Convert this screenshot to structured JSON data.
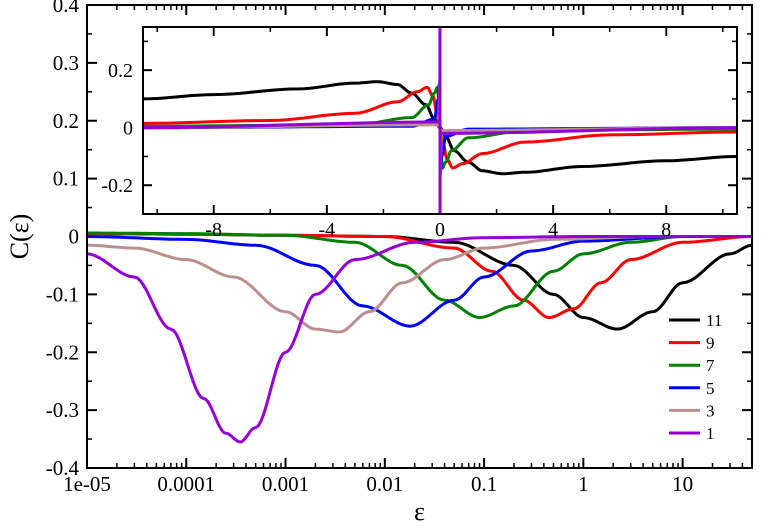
{
  "chart_data": [
    {
      "type": "line",
      "xscale": "log",
      "xlabel": "ε",
      "ylabel": "C(ε)",
      "xlim": [
        1e-05,
        50
      ],
      "ylim": [
        -0.4,
        0.4
      ],
      "xticks": [
        1e-05,
        0.0001,
        0.001,
        0.01,
        0.1,
        1,
        10
      ],
      "xtick_labels": [
        "1e-05",
        "0.0001",
        "0.001",
        "0.01",
        "0.1",
        "1",
        "10"
      ],
      "yticks": [
        -0.4,
        -0.3,
        -0.2,
        -0.1,
        0,
        0.1,
        0.2,
        0.3,
        0.4
      ],
      "ytick_labels": [
        "-0.4",
        "-0.3",
        "-0.2",
        "-0.1",
        "0",
        "0.1",
        "0.2",
        "0.3",
        "0.4"
      ],
      "legend_position": "bottom-right",
      "series": [
        {
          "name": "11",
          "color": "#000000",
          "x": [
            1e-05,
            0.0001,
            0.001,
            0.01,
            0.05,
            0.2,
            0.5,
            1,
            2.2,
            5,
            10,
            30,
            50
          ],
          "y": [
            0.005,
            0.004,
            0.002,
            0.0,
            -0.01,
            -0.05,
            -0.1,
            -0.14,
            -0.16,
            -0.13,
            -0.08,
            -0.03,
            -0.015
          ]
        },
        {
          "name": "9",
          "color": "#ff0000",
          "x": [
            1e-05,
            0.0001,
            0.001,
            0.01,
            0.05,
            0.12,
            0.25,
            0.45,
            0.8,
            1.5,
            3,
            10,
            50
          ],
          "y": [
            0.005,
            0.004,
            0.002,
            0.0,
            -0.02,
            -0.06,
            -0.11,
            -0.14,
            -0.125,
            -0.08,
            -0.04,
            -0.01,
            0.0
          ]
        },
        {
          "name": "7",
          "color": "#008000",
          "x": [
            1e-05,
            0.0001,
            0.001,
            0.005,
            0.015,
            0.04,
            0.09,
            0.2,
            0.5,
            1,
            3,
            10,
            50
          ],
          "y": [
            0.006,
            0.005,
            0.002,
            -0.01,
            -0.05,
            -0.11,
            -0.14,
            -0.12,
            -0.06,
            -0.03,
            -0.01,
            0.0,
            0.0
          ]
        },
        {
          "name": "5",
          "color": "#0000ff",
          "x": [
            1e-05,
            0.0001,
            0.0005,
            0.002,
            0.006,
            0.018,
            0.05,
            0.1,
            0.3,
            1,
            10,
            50
          ],
          "y": [
            0.0,
            -0.005,
            -0.015,
            -0.05,
            -0.12,
            -0.155,
            -0.11,
            -0.07,
            -0.025,
            -0.008,
            0.0,
            0.0
          ]
        },
        {
          "name": "3",
          "color": "#bc8f8f",
          "x": [
            1e-05,
            3e-05,
            0.0001,
            0.0003,
            0.001,
            0.002,
            0.0035,
            0.007,
            0.015,
            0.04,
            0.1,
            0.5,
            5,
            50
          ],
          "y": [
            -0.015,
            -0.02,
            -0.04,
            -0.07,
            -0.13,
            -0.16,
            -0.165,
            -0.13,
            -0.08,
            -0.04,
            -0.02,
            -0.005,
            0.0,
            0.0
          ]
        },
        {
          "name": "1",
          "color": "#9400d3",
          "x": [
            1e-05,
            3e-05,
            7e-05,
            0.00015,
            0.00025,
            0.00035,
            0.0005,
            0.001,
            0.002,
            0.005,
            0.02,
            0.1,
            1,
            50
          ],
          "y": [
            -0.03,
            -0.07,
            -0.16,
            -0.28,
            -0.34,
            -0.355,
            -0.33,
            -0.2,
            -0.1,
            -0.04,
            -0.01,
            -0.002,
            0.0,
            0.0
          ]
        }
      ]
    },
    {
      "type": "line",
      "xlim": [
        -10.5,
        10.5
      ],
      "ylim": [
        -0.3,
        0.35
      ],
      "xticks": [
        -8,
        -4,
        0,
        4,
        8
      ],
      "xtick_labels": [
        "-8",
        "-4",
        "0",
        "4",
        "8"
      ],
      "yticks": [
        -0.2,
        0,
        0.2
      ],
      "ytick_labels": [
        "-0.2",
        "0",
        "0.2"
      ],
      "series": [
        {
          "name": "11",
          "color": "#000000",
          "x": [
            -10.5,
            -8,
            -5,
            -3,
            -2.2,
            -1.5,
            -1,
            -0.5,
            -0.2,
            0,
            0.2,
            0.5,
            1,
            1.5,
            2.2,
            3,
            5,
            8,
            10.5
          ],
          "y": [
            0.1,
            0.115,
            0.135,
            0.155,
            0.16,
            0.15,
            0.12,
            0.08,
            0.03,
            0,
            -0.03,
            -0.08,
            -0.12,
            -0.15,
            -0.16,
            -0.155,
            -0.135,
            -0.115,
            -0.1
          ]
        },
        {
          "name": "9",
          "color": "#ff0000",
          "x": [
            -10.5,
            -6,
            -3,
            -1.5,
            -0.8,
            -0.45,
            -0.25,
            -0.1,
            0,
            0.1,
            0.25,
            0.45,
            0.8,
            1.5,
            3,
            6,
            10.5
          ],
          "y": [
            0.015,
            0.025,
            0.05,
            0.09,
            0.125,
            0.14,
            0.11,
            0.05,
            0,
            -0.05,
            -0.11,
            -0.14,
            -0.125,
            -0.09,
            -0.05,
            -0.025,
            -0.015
          ]
        },
        {
          "name": "7",
          "color": "#008000",
          "x": [
            -10.5,
            -3,
            -1,
            -0.4,
            -0.2,
            -0.09,
            -0.04,
            0,
            0.04,
            0.09,
            0.2,
            0.4,
            1,
            3,
            10.5
          ],
          "y": [
            0.005,
            0.01,
            0.035,
            0.08,
            0.12,
            0.14,
            0.1,
            0,
            -0.1,
            -0.14,
            -0.12,
            -0.08,
            -0.035,
            -0.01,
            -0.005
          ]
        },
        {
          "name": "5",
          "color": "#0000ff",
          "x": [
            -10.5,
            -1,
            -0.2,
            -0.06,
            -0.018,
            -0.006,
            0,
            0.006,
            0.018,
            0.06,
            0.2,
            1,
            10.5
          ],
          "y": [
            0,
            0.005,
            0.03,
            0.1,
            0.155,
            0.11,
            0,
            -0.11,
            -0.155,
            -0.1,
            -0.03,
            -0.005,
            0
          ]
        },
        {
          "name": "3",
          "color": "#bc8f8f",
          "x": [
            -10.5,
            -0.05,
            -0.0035,
            -0.0005,
            0,
            0.0005,
            0.0035,
            0.05,
            10.5
          ],
          "y": [
            0,
            0.01,
            0.165,
            0.05,
            0,
            -0.05,
            -0.165,
            -0.01,
            0
          ]
        },
        {
          "name": "1",
          "color": "#9400d3",
          "x": [
            -10.5,
            -0.01,
            -0.0004,
            -1e-05,
            0,
            1e-05,
            0.0004,
            0.01,
            10.5
          ],
          "y": [
            0,
            0.02,
            0.35,
            0.03,
            0,
            -0.03,
            -0.35,
            -0.02,
            0
          ]
        }
      ]
    }
  ]
}
